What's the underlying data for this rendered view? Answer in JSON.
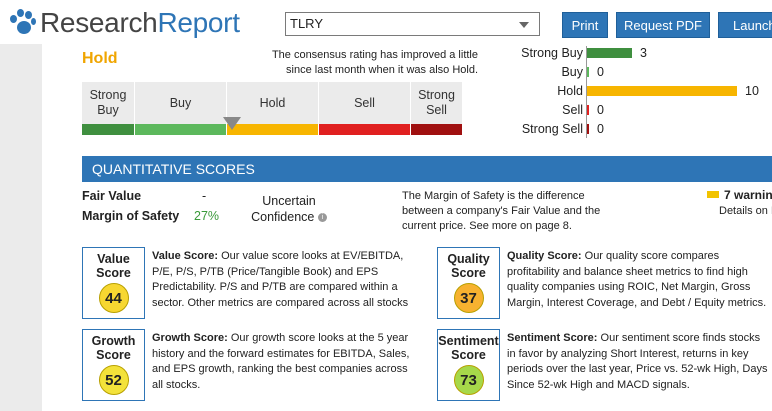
{
  "logo": {
    "part1": "Research",
    "part2": "Report"
  },
  "search": {
    "value": "TLRY"
  },
  "toolbar": {
    "print": "Print",
    "request_pdf": "Request PDF",
    "launch": "Launch"
  },
  "rating": {
    "current": "Hold",
    "consensus_text": "The consensus rating has improved a little since last month when it was also Hold.",
    "scale": [
      "Strong Buy",
      "Buy",
      "Hold",
      "Sell",
      "Strong Sell"
    ],
    "colors": [
      "#3f8f3f",
      "#5cb85c",
      "#f7b500",
      "#e02020",
      "#a01010"
    ]
  },
  "chart_data": {
    "type": "bar",
    "orientation": "horizontal",
    "categories": [
      "Strong Buy",
      "Buy",
      "Hold",
      "Sell",
      "Strong Sell"
    ],
    "values": [
      3,
      0,
      10,
      0,
      0
    ],
    "colors": [
      "#3f8f3f",
      "#5cb85c",
      "#f7b500",
      "#e02020",
      "#a01010"
    ]
  },
  "quant": {
    "header": "QUANTITATIVE SCORES",
    "fair_value_label": "Fair Value",
    "fair_value": "-",
    "margin_label": "Margin of Safety",
    "margin_value": "27%",
    "confidence_line1": "Uncertain",
    "confidence_line2": "Confidence",
    "mos_description": "The Margin of Safety is the difference between a company's Fair Value and the current price. See more on page 8.",
    "warnings": "7 warnin",
    "warnings_sub": "Details on P"
  },
  "scores": [
    {
      "title1": "Value",
      "title2": "Score",
      "value": "44",
      "color": "#f7d731",
      "heading": "Value Score:",
      "text": " Our value score looks at EV/EBITDA, P/E, P/S, P/TB (Price/Tangible Book) and EPS Predictability. P/S and P/TB are compared within a sector. Other metrics are compared across all stocks"
    },
    {
      "title1": "Quality",
      "title2": "Score",
      "value": "37",
      "color": "#f7b230",
      "heading": "Quality Score:",
      "text": " Our quality score compares profitability and balance sheet metrics to find high quality companies using ROIC, Net Margin, Gross Margin, Interest Coverage, and Debt / Equity metrics."
    },
    {
      "title1": "Growth",
      "title2": "Score",
      "value": "52",
      "color": "#f3e23a",
      "heading": "Growth Score:",
      "text": " Our growth score looks at the 5 year history and the forward estimates for EBITDA, Sales, and EPS growth, ranking the best companies across all stocks."
    },
    {
      "title1": "Sentiment",
      "title2": "Score",
      "value": "73",
      "color": "#a6d84a",
      "heading": "Sentiment Score:",
      "text": " Our sentiment score finds stocks in favor by analyzing Short Interest, returns in key periods over the last year, Price vs. 52-wk High, Days Since 52-wk High and MACD signals."
    }
  ]
}
